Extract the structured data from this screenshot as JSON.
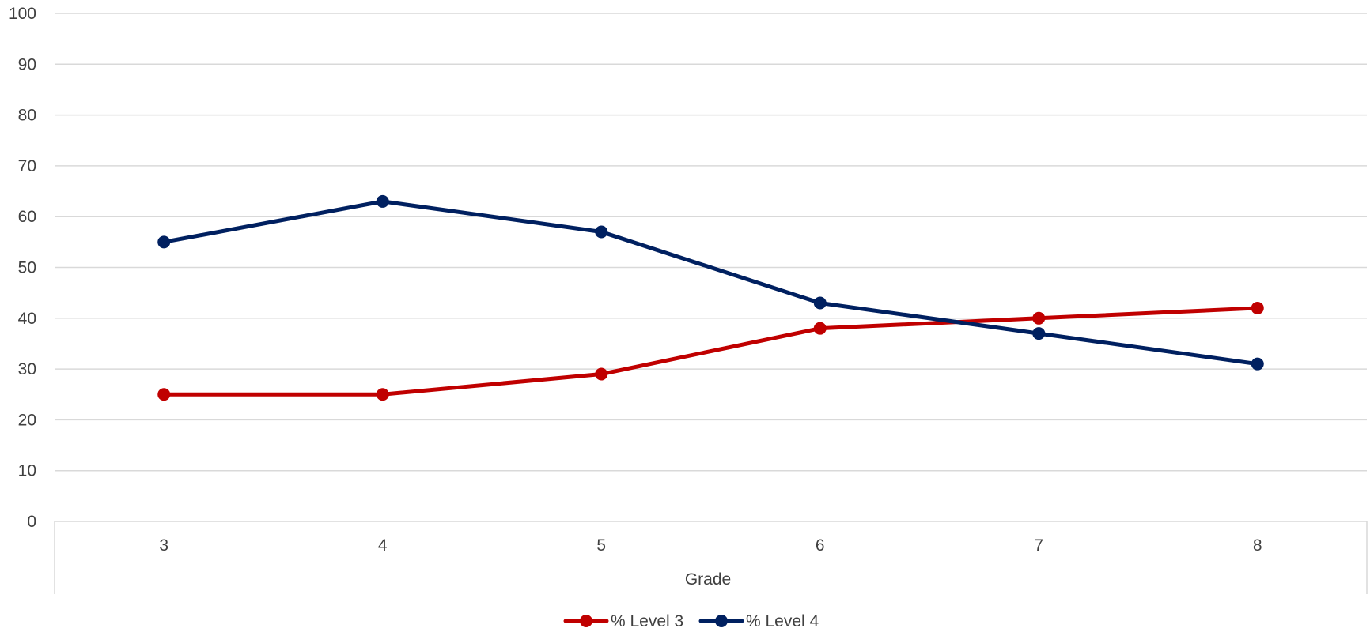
{
  "chart_data": {
    "type": "line",
    "title": "",
    "xlabel": "Grade",
    "ylabel": "",
    "categories": [
      "3",
      "4",
      "5",
      "6",
      "7",
      "8"
    ],
    "ylim": [
      0,
      100
    ],
    "yticks": [
      0,
      10,
      20,
      30,
      40,
      50,
      60,
      70,
      80,
      90,
      100
    ],
    "grid": true,
    "legend_position": "bottom-center",
    "series": [
      {
        "name": "% Level 3",
        "color": "#C00000",
        "values": [
          25,
          25,
          29,
          38,
          40,
          42
        ]
      },
      {
        "name": "% Level 4",
        "color": "#002060",
        "values": [
          55,
          63,
          57,
          43,
          37,
          31
        ]
      }
    ]
  }
}
